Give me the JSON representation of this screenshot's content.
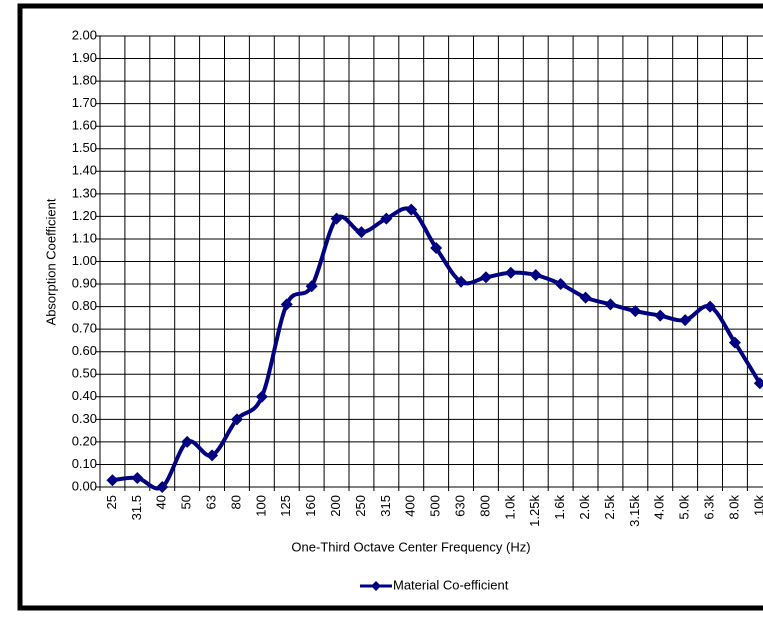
{
  "chart_data": {
    "type": "line",
    "x_label": "One-Third Octave Center Frequency (Hz)",
    "y_label": "Absorption Coefficient",
    "categories": [
      "25",
      "31.5",
      "40",
      "50",
      "63",
      "80",
      "100",
      "125",
      "160",
      "200",
      "250",
      "315",
      "400",
      "500",
      "630",
      "800",
      "1.0k",
      "1.25k",
      "1.6k",
      "2.0k",
      "2.5k",
      "3.15k",
      "4.0k",
      "5.0k",
      "6.3k",
      "8.0k",
      "10k"
    ],
    "series": [
      {
        "name": "Material Co-efficient",
        "color": "#000080",
        "values": [
          0.03,
          0.04,
          0.0,
          0.2,
          0.14,
          0.3,
          0.4,
          0.81,
          0.89,
          1.19,
          1.13,
          1.19,
          1.23,
          1.06,
          0.91,
          0.93,
          0.95,
          0.94,
          0.9,
          0.84,
          0.81,
          0.78,
          0.76,
          0.74,
          0.8,
          0.64,
          0.46
        ]
      }
    ],
    "ylim": [
      0,
      2
    ],
    "yticks": [
      {
        "value": 0,
        "label": "0.00"
      },
      {
        "value": 0.1,
        "label": "0.10"
      },
      {
        "value": 0.2,
        "label": "0.20"
      },
      {
        "value": 0.3,
        "label": "0.30"
      },
      {
        "value": 0.4,
        "label": "0.40"
      },
      {
        "value": 0.5,
        "label": "0.50"
      },
      {
        "value": 0.6,
        "label": "0.60"
      },
      {
        "value": 0.7,
        "label": "0.70"
      },
      {
        "value": 0.8,
        "label": "0.80"
      },
      {
        "value": 0.9,
        "label": "0.90"
      },
      {
        "value": 1,
        "label": "1.00"
      },
      {
        "value": 1.1,
        "label": "1.10"
      },
      {
        "value": 1.2,
        "label": "1.20"
      },
      {
        "value": 1.3,
        "label": "1.30"
      },
      {
        "value": 1.4,
        "label": "1.40"
      },
      {
        "value": 1.5,
        "label": "1.50"
      },
      {
        "value": 1.6,
        "label": "1.60"
      },
      {
        "value": 1.7,
        "label": "1.70"
      },
      {
        "value": 1.8,
        "label": "1.80"
      },
      {
        "value": 1.9,
        "label": "1.90"
      },
      {
        "value": 2,
        "label": "2.00"
      }
    ],
    "grid": true,
    "legend": "bottom"
  }
}
